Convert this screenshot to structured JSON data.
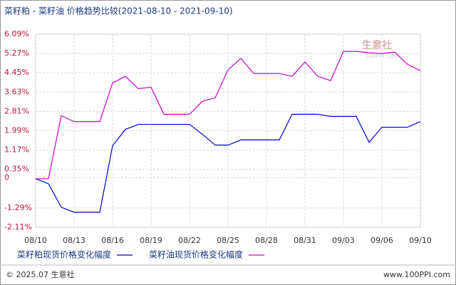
{
  "chart_data": {
    "type": "line",
    "title": "菜籽粕 - 菜籽油 价格趋势比较(2021-08-10 - 2021-09-10)",
    "categories": [
      "08/10",
      null,
      null,
      "08/13",
      null,
      null,
      "08/16",
      null,
      null,
      "08/19",
      null,
      null,
      "08/22",
      null,
      null,
      "08/25",
      null,
      null,
      "08/28",
      null,
      null,
      "08/31",
      null,
      null,
      "09/03",
      null,
      null,
      "09/06",
      null,
      null,
      "09/10"
    ],
    "series": [
      {
        "name": "菜籽粕现货价格变化幅度",
        "color": "#0000cc",
        "values": [
          -0.05,
          -0.26,
          -1.26,
          -1.47,
          -1.47,
          -1.47,
          1.35,
          2.05,
          2.26,
          2.26,
          2.26,
          2.26,
          2.26,
          1.84,
          1.38,
          1.38,
          1.6,
          1.6,
          1.6,
          1.6,
          2.69,
          2.69,
          2.69,
          2.6,
          2.6,
          2.6,
          1.5,
          2.14,
          2.14,
          2.14,
          2.38
        ]
      },
      {
        "name": "菜籽油现货价格变化幅度",
        "color": "#cc00cc",
        "values": [
          -0.05,
          -0.05,
          2.63,
          2.38,
          2.38,
          2.38,
          4.02,
          4.3,
          3.78,
          3.84,
          2.69,
          2.69,
          2.69,
          3.24,
          3.39,
          4.57,
          5.06,
          4.42,
          4.42,
          4.42,
          4.3,
          4.91,
          4.3,
          4.12,
          5.36,
          5.36,
          5.3,
          5.27,
          5.33,
          4.81,
          4.54
        ]
      }
    ],
    "ylim": [
      -2.11,
      6.09
    ],
    "yticks": [
      {
        "value": 6.09,
        "label": "6.09%"
      },
      {
        "value": 5.27,
        "label": "5.27%"
      },
      {
        "value": 4.45,
        "label": "4.45%"
      },
      {
        "value": 3.63,
        "label": "3.63%"
      },
      {
        "value": 2.81,
        "label": "2.81%"
      },
      {
        "value": 1.99,
        "label": "1.99%"
      },
      {
        "value": 1.17,
        "label": "1.17%"
      },
      {
        "value": 0.35,
        "label": "0.35%"
      },
      0,
      {
        "value": -1.29,
        "label": "-1.29%"
      },
      {
        "value": -2.11,
        "label": "-2.11%"
      }
    ],
    "grid": true,
    "watermark": "生意社",
    "watermark_sub": "100PPI.COM",
    "copyright": "© 2025.07 生意社",
    "site": "www.100PPI.com"
  }
}
